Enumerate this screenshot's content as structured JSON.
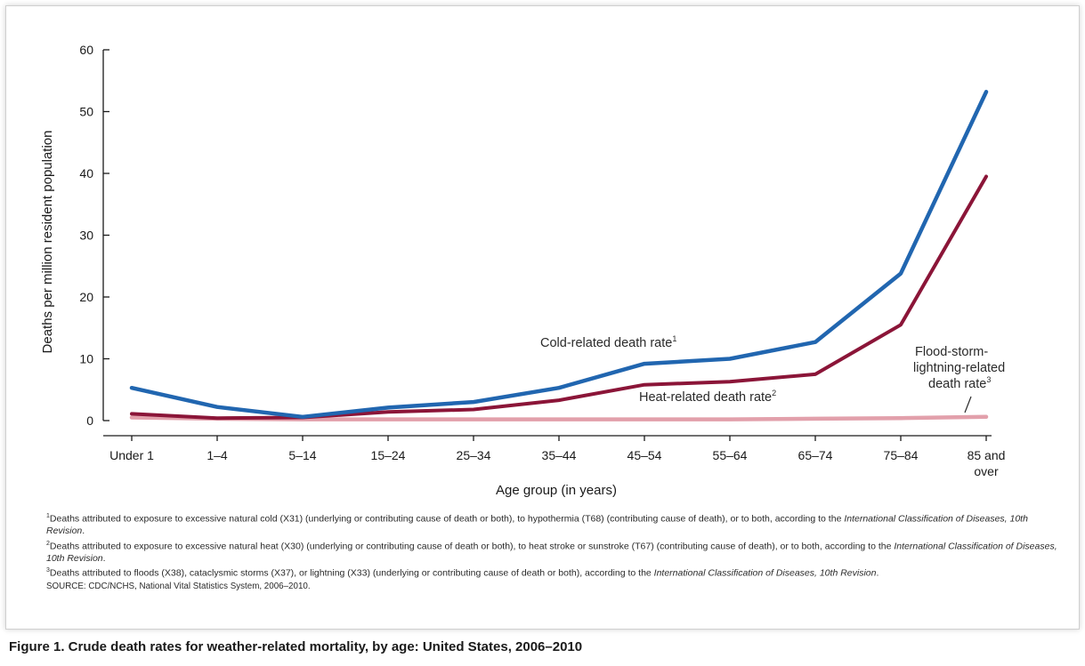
{
  "chart_data": {
    "type": "line",
    "categories": [
      "Under 1",
      "1–4",
      "5–14",
      "15–24",
      "25–34",
      "35–44",
      "45–54",
      "55–64",
      "65–74",
      "75–84",
      "85 and over"
    ],
    "category_lines": [
      [
        "Under 1"
      ],
      [
        "1–4"
      ],
      [
        "5–14"
      ],
      [
        "15–24"
      ],
      [
        "25–34"
      ],
      [
        "35–44"
      ],
      [
        "45–54"
      ],
      [
        "55–64"
      ],
      [
        "65–74"
      ],
      [
        "75–84"
      ],
      [
        "85 and",
        "over"
      ]
    ],
    "series": [
      {
        "name": "Cold-related death rate",
        "sup": "1",
        "color": "#2166b0",
        "values": [
          5.3,
          2.2,
          0.6,
          2.1,
          3.0,
          5.3,
          9.2,
          10.0,
          12.7,
          23.8,
          53.2
        ]
      },
      {
        "name": "Heat-related death rate",
        "sup": "2",
        "color": "#8b1538",
        "values": [
          1.1,
          0.4,
          0.5,
          1.4,
          1.8,
          3.3,
          5.8,
          6.3,
          7.5,
          15.5,
          39.5
        ]
      },
      {
        "name": "Flood-storm-lightning-related death rate",
        "sup": "3",
        "color": "#e2a0ab",
        "values": [
          0.5,
          0.3,
          0.2,
          0.2,
          0.2,
          0.2,
          0.2,
          0.2,
          0.3,
          0.4,
          0.6
        ]
      }
    ],
    "xlabel": "Age group (in years)",
    "ylabel": "Deaths per million resident population",
    "ylim": [
      0,
      60
    ],
    "yticks": [
      0,
      10,
      20,
      30,
      40,
      50,
      60
    ],
    "grid": false,
    "annotations": {
      "cold": {
        "text": "Cold-related death rate",
        "sup": "1"
      },
      "heat": {
        "text": "Heat-related death rate",
        "sup": "2"
      },
      "flood": {
        "lines": [
          "Flood-storm-",
          "lightning-related",
          "death rate"
        ],
        "sup": "3"
      }
    }
  },
  "footnotes": {
    "fn1_sup": "1",
    "fn1_a": "Deaths attributed to exposure to excessive natural cold (X31) (underlying or contributing cause of death or both), to hypothermia (T68) (contributing cause of death), or to both, according to the ",
    "fn1_i": "International Classification of Diseases, 10th Revision",
    "fn1_b": ".",
    "fn2_sup": "2",
    "fn2_a": "Deaths attributed to exposure to excessive natural heat (X30) (underlying or contributing cause of death or both), to heat stroke or sunstroke (T67) (contributing cause of death), or to both, according to the ",
    "fn2_i": "International Classification of Diseases, 10th Revision",
    "fn2_b": ".",
    "fn3_sup": "3",
    "fn3_a": "Deaths attributed to floods (X38), cataclysmic storms (X37), or lightning (X33) (underlying or contributing cause of death or both), according to the ",
    "fn3_i": "International Classification of Diseases, 10th Revision",
    "fn3_b": ".",
    "source": "SOURCE: CDC/NCHS, National Vital Statistics System, 2006–2010."
  },
  "caption": "Figure 1. Crude death rates for weather-related mortality, by age: United States, 2006–2010"
}
